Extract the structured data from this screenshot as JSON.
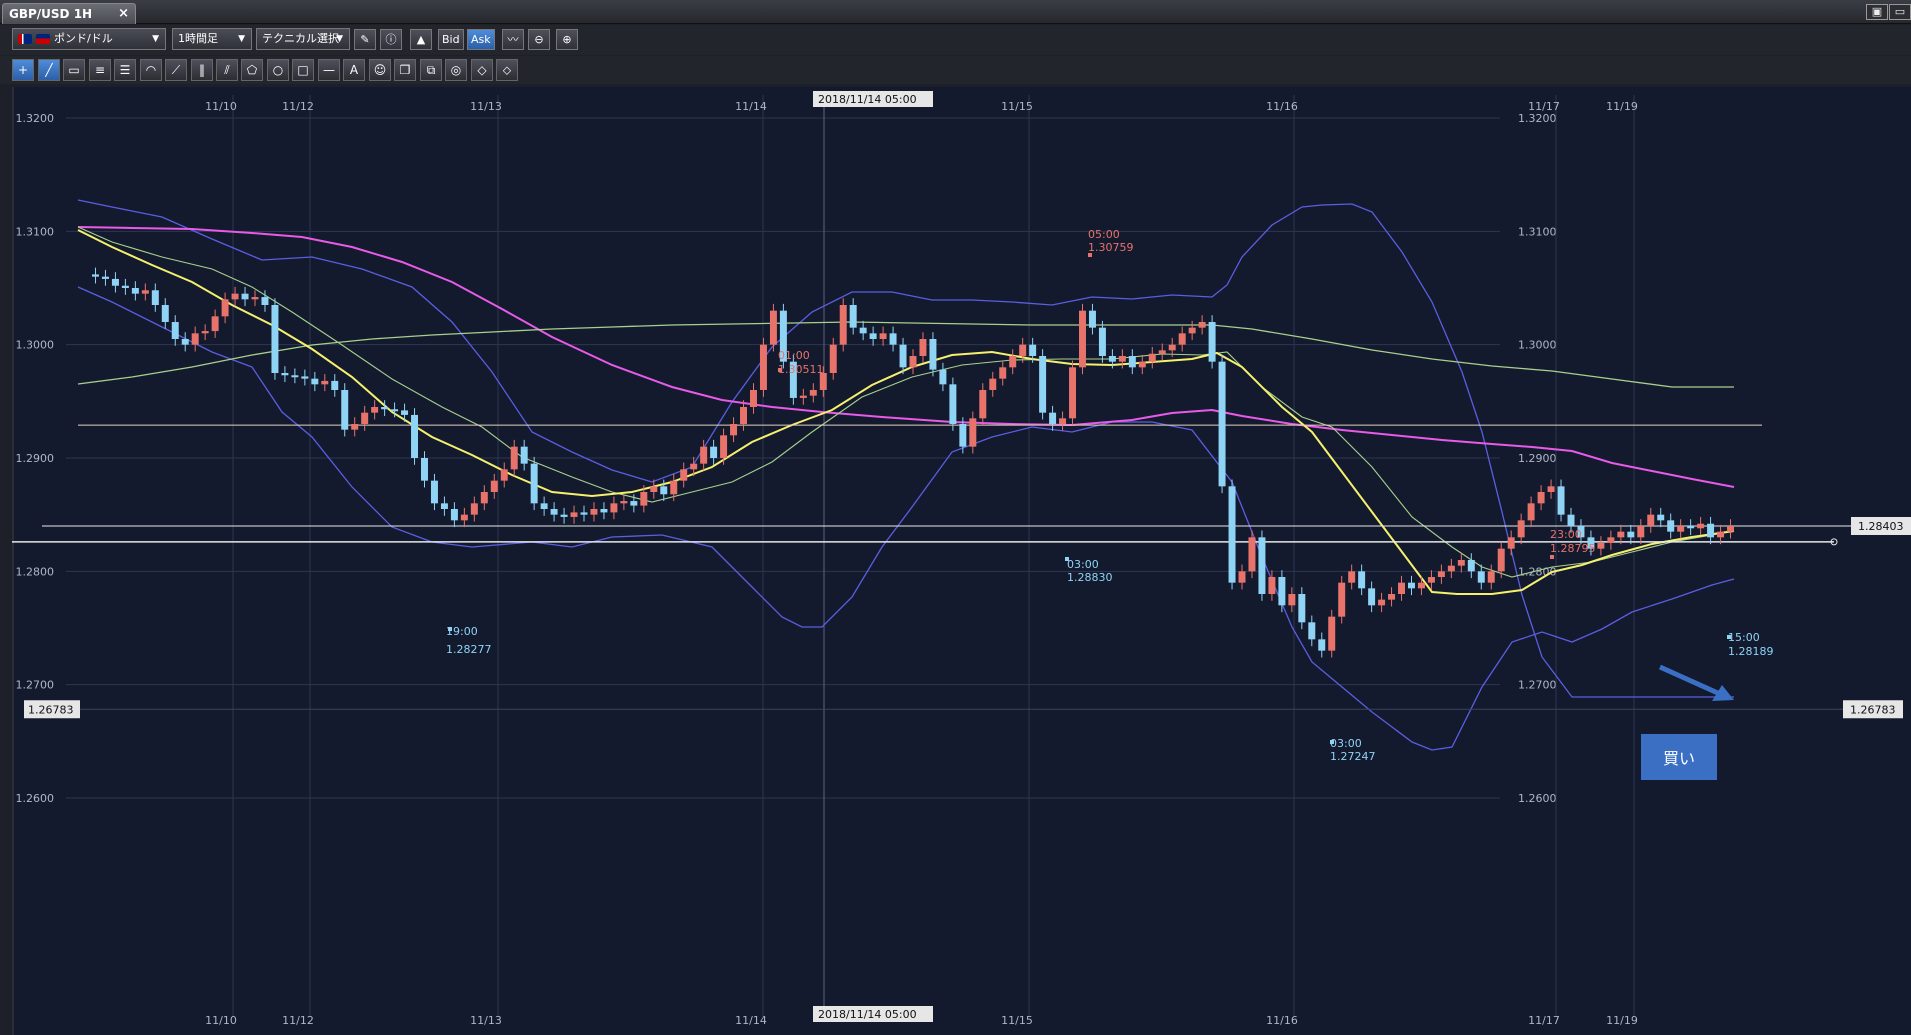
{
  "window": {
    "title": "GBP/USD  1H",
    "close_label": "×",
    "restore_label": "▣",
    "max_label": "▭"
  },
  "toolbar": {
    "currency_pair": "ポンド/ドル",
    "timeframe": "1時間足",
    "technical": "テクニカル選択",
    "bid_label": "Bid",
    "ask_label": "Ask"
  },
  "chart_data": {
    "type": "candlestick",
    "symbol": "GBP/USD",
    "interval": "1H",
    "ylim": [
      1.259,
      1.3235
    ],
    "y_ticks": [
      "1.3200",
      "1.3100",
      "1.3000",
      "1.2900",
      "1.2800",
      "1.2700",
      "1.2600"
    ],
    "x_labels": [
      "11/10",
      "11/12",
      "11/13",
      "11/14",
      "11/15",
      "11/16",
      "11/17",
      "11/19"
    ],
    "crosshair_time": "2018/11/14 05:00",
    "current_price": "1.28403",
    "left_marker_price": "1.26783",
    "right_marker_price": "1.26783",
    "annotations": [
      {
        "time": "19:00",
        "price": "1.28277",
        "type": "low"
      },
      {
        "time": "01:00",
        "price": "1.30511",
        "type": "high"
      },
      {
        "time": "05:00",
        "price": "1.30759",
        "type": "high"
      },
      {
        "time": "03:00",
        "price": "1.28830",
        "type": "low"
      },
      {
        "time": "03:00",
        "price": "1.27247",
        "type": "low"
      },
      {
        "time": "23:00",
        "price": "1.28795",
        "type": "high"
      },
      {
        "time": "15:00",
        "price": "1.28189",
        "type": "low"
      }
    ],
    "buy_label": "買い",
    "horizontal_lines": [
      1.2929,
      1.284,
      1.2826
    ],
    "colors": {
      "background": "#131a2e",
      "grid": "#2e3650",
      "bull": "#e8736b",
      "bear": "#8fd3f5",
      "sma_short": "#f5f06e",
      "sma_mid": "#a8d08d",
      "sma_long": "#e85ae8",
      "bollinger": "#5a5ee0",
      "accent": "#3a6fc4"
    }
  }
}
